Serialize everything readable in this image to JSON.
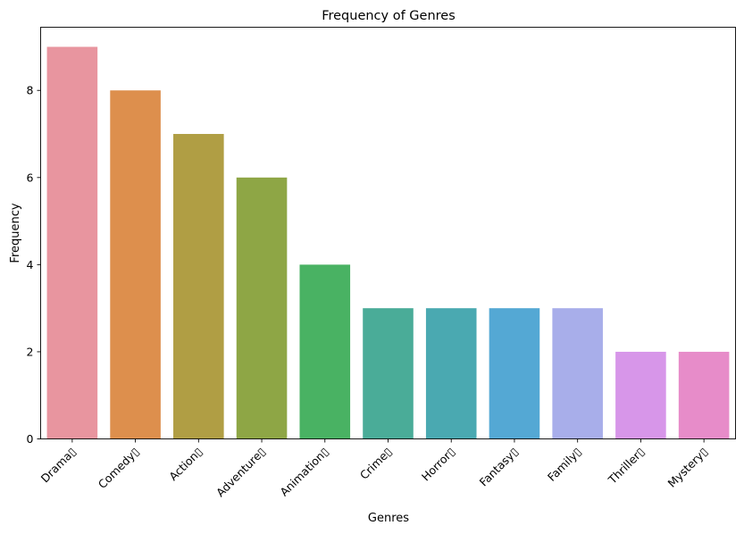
{
  "chart_data": {
    "type": "bar",
    "title": "Frequency of Genres",
    "xlabel": "Genres",
    "ylabel": "Frequency",
    "categories": [
      "Drama▯",
      "Comedy▯",
      "Action▯",
      "Adventure▯",
      "Animation▯",
      "Crime▯",
      "Horror▯",
      "Fantasy▯",
      "Family▯",
      "Thriller▯",
      "Mystery▯"
    ],
    "values": [
      9,
      8,
      7,
      6,
      4,
      3,
      3,
      3,
      3,
      2,
      2
    ],
    "colors": [
      "#e8959f",
      "#dd8f4d",
      "#b09e44",
      "#8ea645",
      "#49b263",
      "#4aac98",
      "#4aa9b1",
      "#54a8d4",
      "#a8aeea",
      "#d796e9",
      "#e78cc9"
    ],
    "ylim": [
      0,
      9.45
    ],
    "yticks": [
      0,
      2,
      4,
      6,
      8
    ],
    "grid": false,
    "legend": "none"
  }
}
